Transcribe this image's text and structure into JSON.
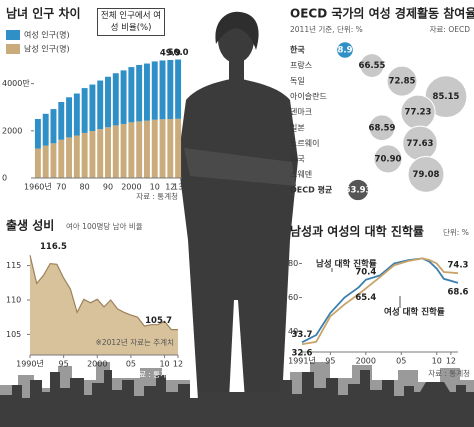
{
  "chart_data": [
    {
      "type": "bar",
      "title": "남녀 인구 차이",
      "categories": [
        "1960년",
        null,
        null,
        "70",
        null,
        null,
        "80",
        null,
        null,
        "90",
        null,
        null,
        "2000",
        null,
        null,
        "10",
        null,
        "12",
        "13"
      ],
      "series": [
        {
          "name": "여성 인구(명)",
          "color": "#2f8fc7",
          "values": [
            1250,
            1350,
            1450,
            1600,
            1700,
            1780,
            1900,
            1970,
            2060,
            2140,
            2210,
            2270,
            2340,
            2390,
            2420,
            2470,
            2490,
            2500,
            2510
          ]
        },
        {
          "name": "남성 인구(명)",
          "color": "#c9ab7c",
          "values": [
            1250,
            1370,
            1470,
            1620,
            1720,
            1800,
            1910,
            1990,
            2070,
            2150,
            2230,
            2290,
            2360,
            2400,
            2430,
            2470,
            2490,
            2500,
            2510
          ]
        }
      ],
      "ratio": {
        "name": "전체 인구에서 여성 비율(%)",
        "values": [
          null,
          null,
          null,
          null,
          null,
          null,
          null,
          null,
          null,
          null,
          null,
          null,
          null,
          null,
          null,
          null,
          null,
          49.9,
          50.0
        ],
        "value_labels": [
          null,
          null,
          null,
          null,
          null,
          null,
          null,
          null,
          null,
          null,
          null,
          null,
          null,
          null,
          null,
          null,
          null,
          "49.9",
          "50.0"
        ]
      },
      "ylim": [
        0,
        5000
      ],
      "yticks": [
        0,
        2000,
        {
          "value": 4000,
          "label": "4000만"
        }
      ],
      "source": "자료 : 통계청"
    },
    {
      "type": "bubble",
      "title": "OECD 국가의 여성 경제활동 참여율",
      "subtitle": "2011년 기준, 단위: %",
      "source": "자료: OECD",
      "categories": [
        "한국",
        "프랑스",
        "독일",
        "아이슬란드",
        "덴마크",
        "일본",
        "노르웨이",
        "미국",
        "스웨덴",
        "OECD 평균"
      ],
      "values": [
        58.96,
        66.55,
        72.85,
        85.15,
        77.23,
        68.59,
        77.63,
        70.9,
        79.08,
        63.93
      ],
      "value_labels": [
        "58.96",
        "66.55",
        "72.85",
        "85.15",
        "77.23",
        "68.59",
        "77.63",
        "70.90",
        "79.08",
        "63.93"
      ],
      "colors": [
        "#2f8fc7",
        "#c8c8c8",
        "#c8c8c8",
        "#c8c8c8",
        "#c8c8c8",
        "#c8c8c8",
        "#c8c8c8",
        "#c8c8c8",
        "#c8c8c8",
        "#555555"
      ]
    },
    {
      "type": "area",
      "title": "출생 성비",
      "subtitle": "여아 100명당 남아 비율",
      "color": "#d8c29c",
      "line_color": "#9c8259",
      "x": [
        1990,
        1991,
        1992,
        1993,
        1994,
        1995,
        1996,
        1997,
        1998,
        1999,
        2000,
        2001,
        2002,
        2003,
        2004,
        2005,
        2006,
        2007,
        2008,
        2009,
        2010,
        2011,
        2012
      ],
      "values": [
        116.5,
        112.4,
        113.6,
        115.3,
        115.2,
        113.2,
        111.6,
        108.2,
        110.1,
        109.6,
        110.1,
        109.0,
        110.0,
        108.7,
        108.2,
        107.8,
        107.5,
        106.2,
        106.4,
        106.4,
        106.9,
        105.7,
        105.7
      ],
      "value_labels": [
        "116.5",
        null,
        null,
        null,
        null,
        null,
        null,
        null,
        null,
        null,
        null,
        null,
        null,
        null,
        null,
        null,
        null,
        null,
        null,
        null,
        null,
        null,
        "105.7"
      ],
      "xlim": [
        1990,
        2012
      ],
      "xticks": [
        {
          "value": 1990,
          "label": "1990년"
        },
        {
          "value": 1995,
          "label": "95"
        },
        2000,
        {
          "value": 2005,
          "label": "05"
        },
        {
          "value": 2010,
          "label": "10"
        },
        {
          "value": 2012,
          "label": "12"
        }
      ],
      "ylim": [
        102,
        118
      ],
      "yticks": [
        105,
        110,
        115
      ],
      "note": "※2012년 자료는 추계치",
      "source": "자료 : 통계청"
    },
    {
      "type": "line",
      "title": "남성과 여성의 대학 진학률",
      "subtitle": "단위: %",
      "x": [
        1991,
        1993,
        1995,
        1997,
        1999,
        2000,
        2002,
        2004,
        2006,
        2008,
        2009,
        2010,
        2011,
        2013
      ],
      "series": [
        {
          "name": "남성 대학 진학률",
          "color": "#3d7fb0",
          "values": [
            33.7,
            38,
            51,
            60,
            66,
            70.4,
            73,
            80,
            82,
            83,
            81,
            77,
            71,
            68.6
          ],
          "value_labels": [
            "33.7",
            null,
            null,
            null,
            null,
            "70.4",
            null,
            null,
            null,
            null,
            null,
            null,
            null,
            "68.6"
          ]
        },
        {
          "name": "여성 대학 진학률",
          "color": "#c9a46a",
          "values": [
            32.6,
            34,
            49,
            56,
            62,
            65.4,
            72,
            79,
            81.5,
            83,
            82,
            80,
            75,
            74.3
          ],
          "value_labels": [
            "32.6",
            null,
            null,
            null,
            null,
            "65.4",
            null,
            null,
            null,
            null,
            null,
            null,
            null,
            "74.3"
          ]
        }
      ],
      "xlim": [
        1991,
        2013
      ],
      "xticks": [
        {
          "value": 1991,
          "label": "1991년"
        },
        {
          "value": 1995,
          "label": "95"
        },
        2000,
        {
          "value": 2005,
          "label": "05"
        },
        {
          "value": 2010,
          "label": "10"
        },
        {
          "value": 2012,
          "label": "12"
        }
      ],
      "ylim": [
        28,
        85
      ],
      "yticks": [
        40,
        60,
        80
      ],
      "source": "자료 : 통계청"
    }
  ]
}
